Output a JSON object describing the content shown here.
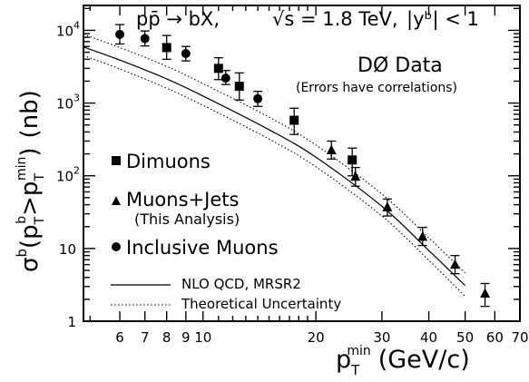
{
  "chart_data": {
    "type": "scatter",
    "title": "pp̄ → bX,  √s = 1.8 TeV,  |yᵇ| < 1",
    "title_parts": {
      "reaction": "pp̄ → bX,",
      "energy": "√s = 1.8 TeV,",
      "rapidity": "|yᵇ| < 1"
    },
    "xlabel": "pTmin (GeV/c)",
    "xlabel_parts": {
      "main": "p",
      "sub": "T",
      "sup": "min",
      "unit": "(GeV/c)"
    },
    "ylabel": "σᵇ(pTᵇ > pTmin) (nb)",
    "ylabel_parts": {
      "sigma": "σ",
      "b": "b",
      "open": "(p",
      "T": "T",
      "gt": ">p",
      "min": "min",
      "close": ")",
      "unit": "(nb)"
    },
    "x_scale": "log",
    "y_scale": "log",
    "xlim": [
      4.8,
      70
    ],
    "ylim": [
      1,
      22000
    ],
    "x_major_ticks": [
      6,
      7,
      8,
      9,
      10,
      20,
      30,
      40,
      50,
      60,
      70
    ],
    "x_tick_labels": [
      "6",
      "7",
      "8",
      "9",
      "10",
      "20",
      "30",
      "40",
      "50",
      "60",
      "70"
    ],
    "y_major_ticks": [
      1,
      10,
      100,
      1000,
      10000
    ],
    "y_tick_labels": [
      {
        "base": "1",
        "exp": ""
      },
      {
        "base": "10",
        "exp": ""
      },
      {
        "base": "10",
        "exp": "2"
      },
      {
        "base": "10",
        "exp": "3"
      },
      {
        "base": "10",
        "exp": "4"
      }
    ],
    "annotation": {
      "title": "DØ Data",
      "subtitle": "(Errors have correlations)"
    },
    "legend_position": "left-middle",
    "series": [
      {
        "name": "Dimuons",
        "marker": "square",
        "points": [
          {
            "x": 8.0,
            "y": 5800,
            "lo": 4000,
            "hi": 8500
          },
          {
            "x": 11.0,
            "y": 3000,
            "lo": 2100,
            "hi": 4200
          },
          {
            "x": 12.5,
            "y": 1700,
            "lo": 1100,
            "hi": 2600
          },
          {
            "x": 17.5,
            "y": 580,
            "lo": 370,
            "hi": 850
          },
          {
            "x": 25.0,
            "y": 165,
            "lo": 100,
            "hi": 240
          }
        ]
      },
      {
        "name": "Muons+Jets",
        "sub_label": "(This Analysis)",
        "marker": "triangle",
        "points": [
          {
            "x": 22.0,
            "y": 225,
            "lo": 170,
            "hi": 300
          },
          {
            "x": 25.5,
            "y": 97,
            "lo": 72,
            "hi": 130
          },
          {
            "x": 31.0,
            "y": 37,
            "lo": 28,
            "hi": 48
          },
          {
            "x": 38.5,
            "y": 14.5,
            "lo": 11,
            "hi": 19.5
          },
          {
            "x": 47.0,
            "y": 6.0,
            "lo": 4.5,
            "hi": 8.0
          },
          {
            "x": 56.5,
            "y": 2.4,
            "lo": 1.6,
            "hi": 3.3
          }
        ]
      },
      {
        "name": "Inclusive Muons",
        "marker": "circle",
        "points": [
          {
            "x": 6.0,
            "y": 8800,
            "lo": 6500,
            "hi": 12000
          },
          {
            "x": 7.0,
            "y": 7700,
            "lo": 6100,
            "hi": 9800
          },
          {
            "x": 9.0,
            "y": 4800,
            "lo": 3800,
            "hi": 6000
          },
          {
            "x": 11.5,
            "y": 2200,
            "lo": 1800,
            "hi": 2800
          },
          {
            "x": 14.0,
            "y": 1150,
            "lo": 900,
            "hi": 1450
          }
        ]
      }
    ],
    "curves": [
      {
        "name": "NLO QCD, MRSR2",
        "style": "solid",
        "x": [
          4.8,
          6,
          8,
          10,
          15,
          20,
          30,
          40,
          50
        ],
        "y": [
          5900,
          3900,
          2150,
          1250,
          430,
          180,
          38,
          9.4,
          3.1
        ]
      },
      {
        "name": "Theoretical Uncertainty",
        "style": "dotted",
        "x": [
          4.8,
          6,
          8,
          10,
          15,
          20,
          30,
          40,
          50
        ],
        "y": [
          8800,
          5800,
          3200,
          1850,
          640,
          265,
          56,
          14,
          4.6
        ]
      },
      {
        "name": "Theoretical Uncertainty (lower)",
        "style": "dotted",
        "legend": false,
        "x": [
          4.8,
          6,
          8,
          10,
          15,
          20,
          30,
          40,
          50
        ],
        "y": [
          4500,
          2950,
          1600,
          930,
          320,
          133,
          28,
          6.9,
          2.2
        ]
      }
    ]
  }
}
